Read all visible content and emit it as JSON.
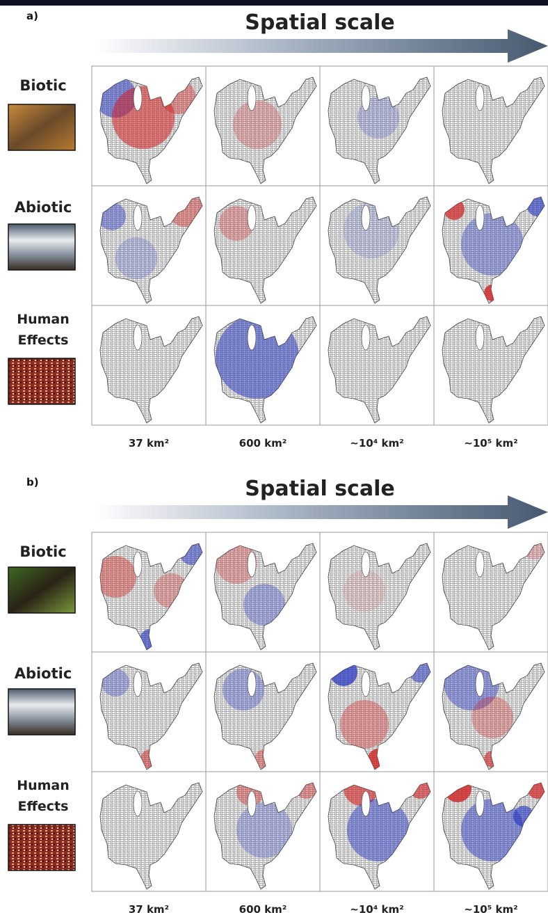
{
  "panels": [
    {
      "label": "a)",
      "title": "Spatial scale",
      "rows": [
        "Biotic",
        "Abiotic",
        "Human Effects"
      ],
      "scales": [
        "37 km²",
        "600 km²",
        "~10⁴ km²",
        "~10⁵ km²"
      ]
    },
    {
      "label": "b)",
      "title": "Spatial scale",
      "rows": [
        "Biotic",
        "Abiotic",
        "Human Effects"
      ],
      "scales": [
        "37 km²",
        "600 km²",
        "~10⁴ km²",
        "~10⁵ km²"
      ]
    }
  ]
}
